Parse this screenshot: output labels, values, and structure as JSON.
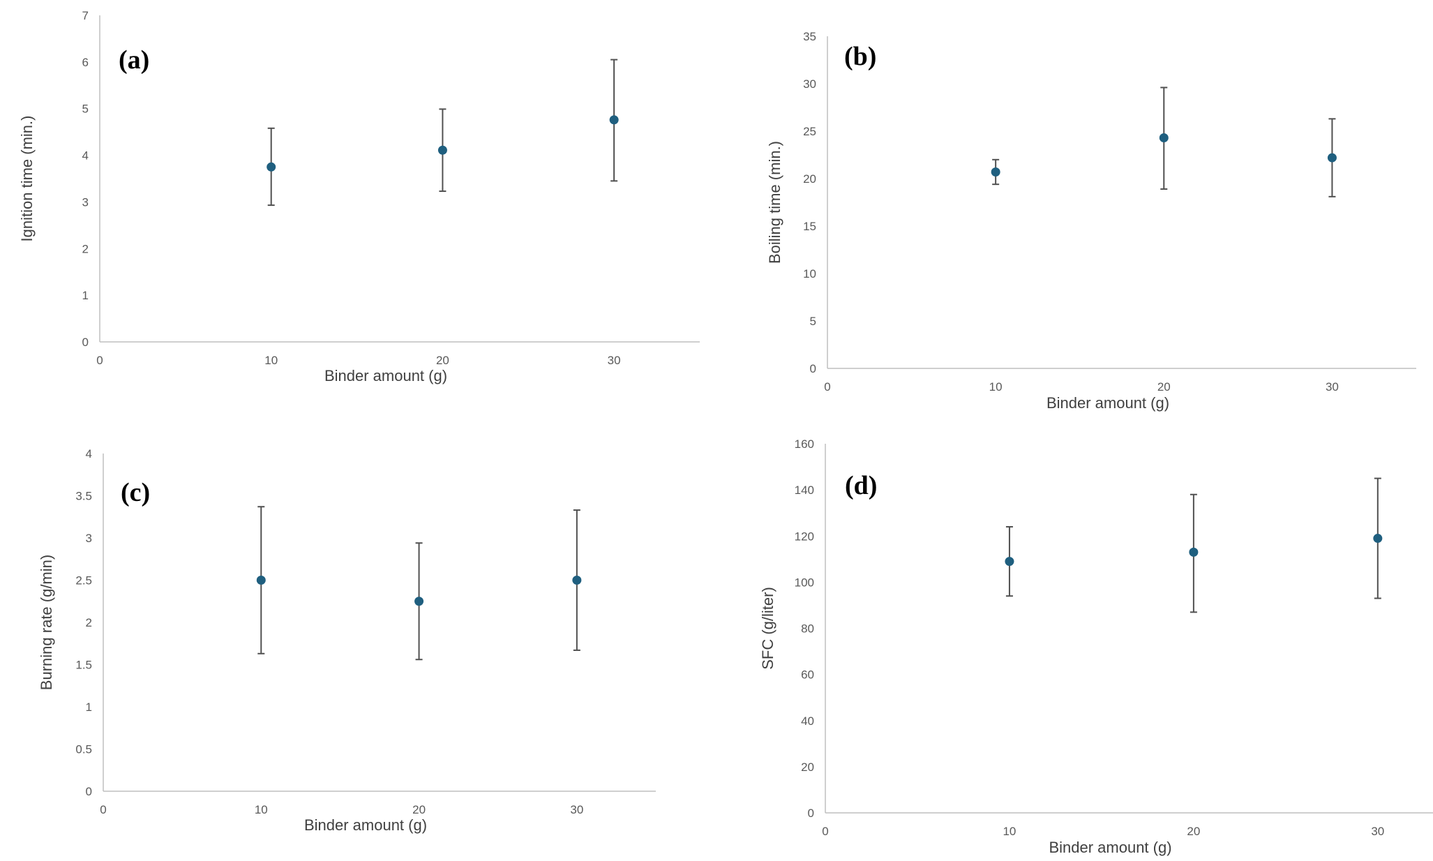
{
  "colors": {
    "point": "#1f5f7f",
    "error_bar": "#505050",
    "axis": "#bfbfbf",
    "tick_text": "#595959",
    "label_text": "#404040"
  },
  "chart_data": [
    {
      "type": "scatter",
      "panel": "(a)",
      "xlabel": "Binder amount (g)",
      "ylabel": "Ignition time (min.)",
      "xlim": [
        0,
        35
      ],
      "ylim": [
        0,
        7
      ],
      "xticks": [
        0,
        10,
        20,
        30
      ],
      "yticks": [
        0,
        1,
        2,
        3,
        4,
        5,
        6,
        7
      ],
      "grid": false,
      "points": [
        {
          "x": 10,
          "y": 3.75,
          "err_low": 2.93,
          "err_high": 4.58
        },
        {
          "x": 20,
          "y": 4.11,
          "err_low": 3.23,
          "err_high": 4.99
        },
        {
          "x": 30,
          "y": 4.76,
          "err_low": 3.45,
          "err_high": 6.05
        }
      ]
    },
    {
      "type": "scatter",
      "panel": "(b)",
      "xlabel": "Binder amount (g)",
      "ylabel": "Boiling time (min.)",
      "xlim": [
        0,
        35
      ],
      "ylim": [
        0,
        35
      ],
      "xticks": [
        0,
        10,
        20,
        30
      ],
      "yticks": [
        0,
        5,
        10,
        15,
        20,
        25,
        30,
        35
      ],
      "grid": false,
      "points": [
        {
          "x": 10,
          "y": 20.7,
          "err_low": 19.4,
          "err_high": 22.0
        },
        {
          "x": 20,
          "y": 24.3,
          "err_low": 18.9,
          "err_high": 29.6
        },
        {
          "x": 30,
          "y": 22.2,
          "err_low": 18.1,
          "err_high": 26.3
        }
      ]
    },
    {
      "type": "scatter",
      "panel": "(c)",
      "xlabel": "Binder amount (g)",
      "ylabel": "Burning rate (g/min)",
      "xlim": [
        0,
        35
      ],
      "ylim": [
        0,
        4
      ],
      "xticks": [
        0,
        10,
        20,
        30
      ],
      "yticks": [
        0,
        0.5,
        1,
        1.5,
        2,
        2.5,
        3,
        3.5,
        4
      ],
      "grid": false,
      "points": [
        {
          "x": 10,
          "y": 2.5,
          "err_low": 1.63,
          "err_high": 3.37
        },
        {
          "x": 20,
          "y": 2.25,
          "err_low": 1.56,
          "err_high": 2.94
        },
        {
          "x": 30,
          "y": 2.5,
          "err_low": 1.67,
          "err_high": 3.33
        }
      ]
    },
    {
      "type": "scatter",
      "panel": "(d)",
      "xlabel": "Binder amount (g)",
      "ylabel": "SFC (g/liter)",
      "xlim": [
        0,
        33
      ],
      "ylim": [
        0,
        160
      ],
      "xticks": [
        0,
        10,
        20,
        30
      ],
      "yticks": [
        0,
        20,
        40,
        60,
        80,
        100,
        120,
        140,
        160
      ],
      "grid": false,
      "points": [
        {
          "x": 10,
          "y": 109,
          "err_low": 94,
          "err_high": 124
        },
        {
          "x": 20,
          "y": 113,
          "err_low": 87,
          "err_high": 138
        },
        {
          "x": 30,
          "y": 119,
          "err_low": 93,
          "err_high": 145
        }
      ]
    }
  ]
}
